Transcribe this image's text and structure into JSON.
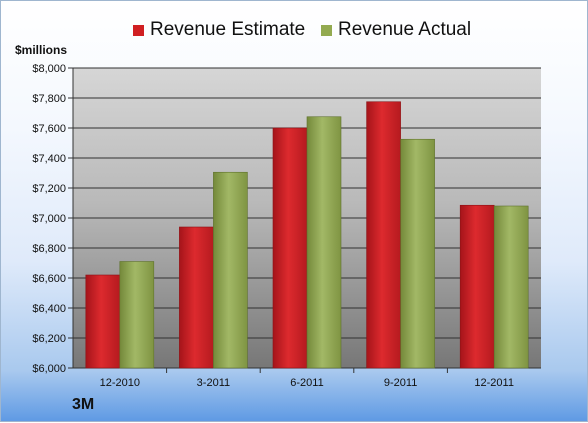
{
  "chart_data": {
    "type": "bar",
    "categories": [
      "12-2010",
      "3-2011",
      "6-2011",
      "9-2011",
      "12-2011"
    ],
    "series": [
      {
        "name": "Revenue Estimate",
        "values": [
          6620,
          6940,
          7600,
          7775,
          7085
        ]
      },
      {
        "name": "Revenue Actual",
        "values": [
          6710,
          7305,
          7675,
          7525,
          7080
        ]
      }
    ],
    "ylabel": "$millions",
    "ylim": [
      6000,
      8000
    ],
    "yticks": [
      "$6,000",
      "$6,200",
      "$6,400",
      "$6,600",
      "$6,800",
      "$7,000",
      "$7,200",
      "$7,400",
      "$7,600",
      "$7,800",
      "$8,000"
    ],
    "grid": true,
    "legend_position": "top"
  },
  "company": "3M",
  "colors": {
    "estimate": "#d01f22",
    "actual": "#93aa50"
  }
}
